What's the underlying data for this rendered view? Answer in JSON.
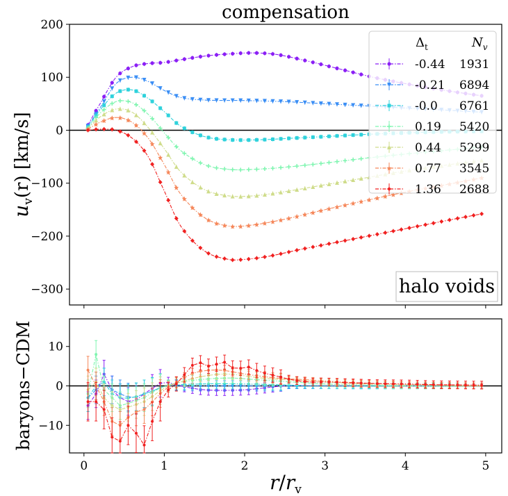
{
  "chart_data": [
    {
      "type": "line",
      "title": "compensation",
      "ylabel": "u_v(r) [km/s]",
      "ylabel_parts": {
        "main": "u",
        "sub": "v",
        "rest": "(r) [km/s]"
      },
      "xlabel": "",
      "xlim": [
        -0.18,
        5.2
      ],
      "ylim": [
        -330,
        200
      ],
      "yticks": [
        200,
        100,
        0,
        -100,
        -200,
        -300
      ],
      "ytick_labels": [
        "200",
        "100",
        "0",
        "−100",
        "−200",
        "−300"
      ],
      "annotation": "halo voids",
      "legend": {
        "header_delta": "Δ",
        "header_delta_sub": "t",
        "header_n": "N",
        "header_n_sub": "v",
        "position": "upper-right",
        "entries": [
          {
            "delta": "-0.44",
            "n": "1931"
          },
          {
            "delta": "-0.21",
            "n": "6894"
          },
          {
            "delta": "-0.0",
            "n": "6761"
          },
          {
            "delta": "0.19",
            "n": "5420"
          },
          {
            "delta": "0.44",
            "n": "5299"
          },
          {
            "delta": "0.77",
            "n": "3545"
          },
          {
            "delta": "1.36",
            "n": "2688"
          }
        ]
      },
      "series": [
        {
          "name": "-0.44",
          "color": "#8b1ff5",
          "marker": "circle",
          "anchors": [
            [
              0.05,
              10
            ],
            [
              0.2,
              50
            ],
            [
              0.4,
              100
            ],
            [
              0.6,
              120
            ],
            [
              0.8,
              126
            ],
            [
              1.0,
              128
            ],
            [
              1.2,
              133
            ],
            [
              1.5,
              140
            ],
            [
              1.8,
              144
            ],
            [
              2.1,
              146
            ],
            [
              2.4,
              143
            ],
            [
              2.8,
              130
            ],
            [
              3.2,
              115
            ],
            [
              3.6,
              100
            ],
            [
              4.0,
              88
            ],
            [
              4.5,
              75
            ],
            [
              4.95,
              65
            ]
          ]
        },
        {
          "name": "-0.21",
          "color": "#3a8ef5",
          "marker": "triangle-down",
          "anchors": [
            [
              0.05,
              8
            ],
            [
              0.2,
              42
            ],
            [
              0.4,
              88
            ],
            [
              0.6,
              100
            ],
            [
              0.8,
              92
            ],
            [
              1.0,
              75
            ],
            [
              1.2,
              62
            ],
            [
              1.5,
              57
            ],
            [
              2.0,
              56
            ],
            [
              2.5,
              54
            ],
            [
              3.0,
              50
            ],
            [
              3.5,
              46
            ],
            [
              4.0,
              42
            ],
            [
              4.5,
              38
            ],
            [
              4.95,
              34
            ]
          ]
        },
        {
          "name": "-0.0",
          "color": "#2fd2dc",
          "marker": "square",
          "anchors": [
            [
              0.05,
              6
            ],
            [
              0.2,
              38
            ],
            [
              0.4,
              70
            ],
            [
              0.6,
              76
            ],
            [
              0.8,
              60
            ],
            [
              1.0,
              35
            ],
            [
              1.2,
              8
            ],
            [
              1.5,
              -12
            ],
            [
              1.8,
              -18
            ],
            [
              2.2,
              -18
            ],
            [
              2.6,
              -15
            ],
            [
              3.0,
              -12
            ],
            [
              3.5,
              -8
            ],
            [
              4.0,
              -5
            ],
            [
              4.5,
              -3
            ],
            [
              4.95,
              -2
            ]
          ]
        },
        {
          "name": "0.19",
          "color": "#7ff5b0",
          "marker": "plus",
          "anchors": [
            [
              0.05,
              4
            ],
            [
              0.2,
              32
            ],
            [
              0.4,
              54
            ],
            [
              0.6,
              52
            ],
            [
              0.8,
              30
            ],
            [
              1.0,
              -5
            ],
            [
              1.2,
              -38
            ],
            [
              1.5,
              -65
            ],
            [
              1.8,
              -74
            ],
            [
              2.1,
              -74
            ],
            [
              2.5,
              -70
            ],
            [
              3.0,
              -62
            ],
            [
              3.5,
              -53
            ],
            [
              4.0,
              -45
            ],
            [
              4.5,
              -38
            ],
            [
              4.95,
              -32
            ]
          ]
        },
        {
          "name": "0.44",
          "color": "#cfdc8a",
          "marker": "triangle-up",
          "anchors": [
            [
              0.05,
              3
            ],
            [
              0.2,
              25
            ],
            [
              0.4,
              40
            ],
            [
              0.6,
              34
            ],
            [
              0.8,
              5
            ],
            [
              1.0,
              -35
            ],
            [
              1.2,
              -78
            ],
            [
              1.5,
              -112
            ],
            [
              1.8,
              -124
            ],
            [
              2.1,
              -124
            ],
            [
              2.5,
              -116
            ],
            [
              3.0,
              -103
            ],
            [
              3.5,
              -90
            ],
            [
              4.0,
              -77
            ],
            [
              4.5,
              -66
            ],
            [
              4.95,
              -57
            ]
          ]
        },
        {
          "name": "0.77",
          "color": "#f5875a",
          "marker": "star",
          "anchors": [
            [
              0.05,
              2
            ],
            [
              0.2,
              15
            ],
            [
              0.4,
              24
            ],
            [
              0.6,
              15
            ],
            [
              0.8,
              -15
            ],
            [
              1.0,
              -65
            ],
            [
              1.2,
              -120
            ],
            [
              1.5,
              -165
            ],
            [
              1.8,
              -181
            ],
            [
              2.1,
              -179
            ],
            [
              2.5,
              -168
            ],
            [
              3.0,
              -150
            ],
            [
              3.5,
              -133
            ],
            [
              4.0,
              -117
            ],
            [
              4.5,
              -103
            ],
            [
              4.95,
              -90
            ]
          ]
        },
        {
          "name": "1.36",
          "color": "#f02020",
          "marker": "diamond",
          "anchors": [
            [
              0.05,
              0
            ],
            [
              0.2,
              2
            ],
            [
              0.4,
              0
            ],
            [
              0.6,
              -15
            ],
            [
              0.8,
              -50
            ],
            [
              1.0,
              -115
            ],
            [
              1.2,
              -180
            ],
            [
              1.5,
              -228
            ],
            [
              1.8,
              -244
            ],
            [
              2.0,
              -244
            ],
            [
              2.3,
              -238
            ],
            [
              2.7,
              -225
            ],
            [
              3.2,
              -210
            ],
            [
              3.7,
              -195
            ],
            [
              4.2,
              -180
            ],
            [
              4.6,
              -168
            ],
            [
              4.95,
              -158
            ]
          ]
        }
      ]
    },
    {
      "type": "line",
      "ylabel": "baryons−CDM",
      "xlabel": "r/r_v",
      "xlabel_parts": {
        "main": "r",
        "slash": "/",
        "main2": "r",
        "sub": "v"
      },
      "xlim": [
        -0.18,
        5.2
      ],
      "ylim": [
        -17,
        17
      ],
      "xticks": [
        0,
        1,
        2,
        3,
        4,
        5
      ],
      "xtick_labels": [
        "0",
        "1",
        "2",
        "3",
        "4",
        "5"
      ],
      "yticks": [
        10,
        0,
        -10
      ],
      "ytick_labels": [
        "10",
        "0",
        "−10"
      ],
      "series": [
        {
          "name": "-0.44",
          "color": "#8b1ff5",
          "anchors": [
            [
              0.05,
              -5
            ],
            [
              0.15,
              -2
            ],
            [
              0.25,
              3
            ],
            [
              0.35,
              -1
            ],
            [
              0.45,
              -3
            ],
            [
              0.6,
              -4
            ],
            [
              0.75,
              -2
            ],
            [
              0.9,
              0
            ],
            [
              1.0,
              1
            ],
            [
              1.2,
              0
            ],
            [
              1.5,
              -1
            ],
            [
              2.0,
              -1
            ],
            [
              2.5,
              0
            ],
            [
              3.0,
              0
            ],
            [
              4.0,
              0
            ],
            [
              4.95,
              0
            ]
          ]
        },
        {
          "name": "-0.21",
          "color": "#3a8ef5",
          "anchors": [
            [
              0.05,
              -3
            ],
            [
              0.15,
              -1
            ],
            [
              0.25,
              1
            ],
            [
              0.35,
              -1
            ],
            [
              0.45,
              -2
            ],
            [
              0.6,
              -3
            ],
            [
              0.75,
              -2
            ],
            [
              0.9,
              -1
            ],
            [
              1.0,
              0
            ],
            [
              1.5,
              0
            ],
            [
              2.0,
              0
            ],
            [
              3.0,
              0
            ],
            [
              4.95,
              0
            ]
          ]
        },
        {
          "name": "-0.0",
          "color": "#2fd2dc",
          "anchors": [
            [
              0.05,
              -3
            ],
            [
              0.15,
              0
            ],
            [
              0.25,
              1
            ],
            [
              0.35,
              -2
            ],
            [
              0.45,
              -3
            ],
            [
              0.6,
              -3
            ],
            [
              0.75,
              -2
            ],
            [
              0.9,
              -1
            ],
            [
              1.0,
              0
            ],
            [
              1.5,
              0.5
            ],
            [
              2.0,
              0.5
            ],
            [
              3.0,
              0
            ],
            [
              4.95,
              0
            ]
          ]
        },
        {
          "name": "0.19",
          "color": "#7ff5b0",
          "anchors": [
            [
              0.05,
              -2
            ],
            [
              0.15,
              8
            ],
            [
              0.25,
              -1
            ],
            [
              0.35,
              -3
            ],
            [
              0.45,
              -5
            ],
            [
              0.6,
              -4
            ],
            [
              0.75,
              -3
            ],
            [
              0.9,
              -1
            ],
            [
              1.1,
              0.5
            ],
            [
              1.4,
              1.5
            ],
            [
              1.8,
              2
            ],
            [
              2.2,
              1.5
            ],
            [
              2.6,
              1
            ],
            [
              3.0,
              0.5
            ],
            [
              4.0,
              0
            ],
            [
              4.95,
              0
            ]
          ]
        },
        {
          "name": "0.44",
          "color": "#cfdc8a",
          "anchors": [
            [
              0.05,
              -1
            ],
            [
              0.15,
              1
            ],
            [
              0.25,
              -3
            ],
            [
              0.35,
              -5
            ],
            [
              0.45,
              -6
            ],
            [
              0.6,
              -5
            ],
            [
              0.75,
              -4
            ],
            [
              0.9,
              -2
            ],
            [
              1.0,
              -0.5
            ],
            [
              1.2,
              1
            ],
            [
              1.5,
              2.5
            ],
            [
              1.8,
              3
            ],
            [
              2.2,
              2
            ],
            [
              2.6,
              1.5
            ],
            [
              3.0,
              1
            ],
            [
              3.5,
              0.5
            ],
            [
              4.95,
              0
            ]
          ]
        },
        {
          "name": "0.77",
          "color": "#f5875a",
          "anchors": [
            [
              0.05,
              4
            ],
            [
              0.15,
              0
            ],
            [
              0.25,
              -4
            ],
            [
              0.35,
              -9
            ],
            [
              0.45,
              -10
            ],
            [
              0.6,
              -7
            ],
            [
              0.75,
              -6
            ],
            [
              0.9,
              -3
            ],
            [
              1.0,
              -1
            ],
            [
              1.2,
              1.5
            ],
            [
              1.4,
              3.5
            ],
            [
              1.7,
              4
            ],
            [
              2.0,
              3
            ],
            [
              2.4,
              2
            ],
            [
              2.8,
              1.5
            ],
            [
              3.2,
              1
            ],
            [
              3.8,
              0.5
            ],
            [
              4.95,
              0
            ]
          ]
        },
        {
          "name": "1.36",
          "color": "#f02020",
          "anchors": [
            [
              0.05,
              -4
            ],
            [
              0.15,
              -4
            ],
            [
              0.25,
              -6
            ],
            [
              0.35,
              -13
            ],
            [
              0.45,
              -14
            ],
            [
              0.55,
              -10
            ],
            [
              0.65,
              -12
            ],
            [
              0.75,
              -15
            ],
            [
              0.85,
              -9
            ],
            [
              0.95,
              -4
            ],
            [
              1.05,
              -1
            ],
            [
              1.15,
              0.5
            ],
            [
              1.3,
              4
            ],
            [
              1.4,
              6
            ],
            [
              1.55,
              5
            ],
            [
              1.65,
              5.5
            ],
            [
              1.75,
              6
            ],
            [
              1.9,
              4
            ],
            [
              2.0,
              5
            ],
            [
              2.2,
              3.5
            ],
            [
              2.4,
              2.5
            ],
            [
              2.6,
              1.5
            ],
            [
              2.8,
              1
            ],
            [
              3.0,
              1
            ],
            [
              3.3,
              0.8
            ],
            [
              3.6,
              0.6
            ],
            [
              4.0,
              0.5
            ],
            [
              4.4,
              0.3
            ],
            [
              4.95,
              0.2
            ]
          ]
        }
      ]
    }
  ]
}
